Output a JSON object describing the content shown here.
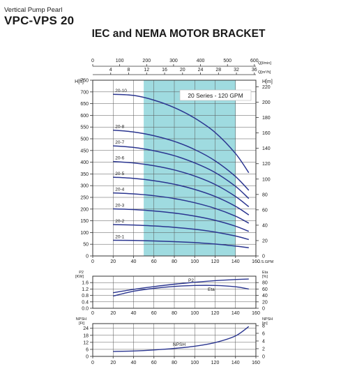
{
  "header": {
    "subtitle": "Vertical Pump Pearl",
    "model": "VPC-VPS 20",
    "title": "IEC and NEMA MOTOR BRACKET"
  },
  "colors": {
    "curve": "#2a3590",
    "band": "#9fdbe0",
    "text": "#1a1a1a",
    "grid": "#333333"
  },
  "chart_data": [
    {
      "type": "line",
      "name": "head",
      "box_label": "20 Series - 120 GPM",
      "xlabel": "U.S.GPM",
      "ylabel": "H[ft]",
      "ylabel_right": "H[m]",
      "xlim": [
        0,
        160
      ],
      "ylim": [
        0,
        750
      ],
      "ylim_right": [
        0,
        228.6
      ],
      "x_ticks": [
        0,
        20,
        40,
        60,
        80,
        100,
        120,
        140,
        160
      ],
      "y_ticks": [
        0,
        50,
        100,
        150,
        200,
        250,
        300,
        350,
        400,
        450,
        500,
        550,
        600,
        650,
        700,
        750
      ],
      "y_right_ticks": [
        0,
        20,
        40,
        60,
        80,
        100,
        120,
        140,
        160,
        180,
        200,
        220
      ],
      "top_axis_1": {
        "label": "Q[l/min]",
        "ticks": [
          0,
          100,
          200,
          300,
          400,
          500,
          600
        ]
      },
      "top_axis_2": {
        "label": "Q[m³/h]",
        "ticks": [
          4,
          8,
          12,
          16,
          20,
          24,
          28,
          32,
          36
        ]
      },
      "band": [
        50,
        140
      ],
      "grid": true,
      "series": [
        {
          "name": "20-1",
          "x": [
            20,
            40,
            60,
            80,
            100,
            120,
            140,
            153
          ],
          "y": [
            67,
            66,
            64,
            61,
            57,
            51,
            42,
            35
          ]
        },
        {
          "name": "20-2",
          "x": [
            20,
            40,
            60,
            80,
            100,
            120,
            140,
            153
          ],
          "y": [
            134,
            132,
            128,
            122,
            114,
            102,
            85,
            70
          ]
        },
        {
          "name": "20-3",
          "x": [
            20,
            40,
            60,
            80,
            100,
            120,
            140,
            153
          ],
          "y": [
            201,
            198,
            192,
            183,
            170,
            152,
            127,
            105
          ]
        },
        {
          "name": "20-4",
          "x": [
            20,
            40,
            60,
            80,
            100,
            120,
            140,
            153
          ],
          "y": [
            269,
            265,
            257,
            245,
            227,
            203,
            170,
            140
          ]
        },
        {
          "name": "20-5",
          "x": [
            20,
            40,
            60,
            80,
            100,
            120,
            140,
            153
          ],
          "y": [
            336,
            331,
            321,
            306,
            284,
            254,
            212,
            175
          ]
        },
        {
          "name": "20-6",
          "x": [
            20,
            40,
            60,
            80,
            100,
            120,
            140,
            153
          ],
          "y": [
            403,
            397,
            385,
            367,
            341,
            305,
            254,
            210
          ]
        },
        {
          "name": "20-7",
          "x": [
            20,
            40,
            60,
            80,
            100,
            120,
            140,
            153
          ],
          "y": [
            470,
            463,
            449,
            428,
            397,
            356,
            297,
            245
          ]
        },
        {
          "name": "20-8",
          "x": [
            20,
            40,
            60,
            80,
            100,
            120,
            140,
            153
          ],
          "y": [
            537,
            529,
            513,
            489,
            454,
            406,
            339,
            280
          ]
        },
        {
          "name": "20-10",
          "x": [
            20,
            40,
            60,
            80,
            100,
            120,
            140,
            153
          ],
          "y": [
            690,
            685,
            665,
            633,
            588,
            527,
            437,
            355
          ]
        }
      ]
    },
    {
      "type": "line",
      "name": "power-efficiency",
      "ylabel": "P2",
      "ylabel_unit": "[KW]",
      "ylabel_right": "Eta",
      "ylabel_right_unit": "[%]",
      "xlim": [
        0,
        160
      ],
      "ylim": [
        0,
        2.0
      ],
      "ylim_right": [
        0,
        100
      ],
      "x_ticks": [
        0,
        20,
        40,
        60,
        80,
        100,
        120,
        140,
        160
      ],
      "y_ticks": [
        "0.0",
        "0.4",
        "0.8",
        "1.2",
        "1.6"
      ],
      "y_right_ticks": [
        0,
        20,
        40,
        60,
        80
      ],
      "series": [
        {
          "name": "P2",
          "x": [
            20,
            40,
            60,
            80,
            100,
            120,
            140,
            153
          ],
          "y": [
            0.97,
            1.18,
            1.35,
            1.5,
            1.62,
            1.72,
            1.79,
            1.82
          ]
        },
        {
          "name": "Eta",
          "x": [
            20,
            40,
            60,
            80,
            100,
            120,
            140,
            153
          ],
          "y": [
            38,
            53,
            62,
            68,
            71,
            71,
            67,
            60
          ]
        }
      ]
    },
    {
      "type": "line",
      "name": "npsh",
      "ylabel": "NPSH",
      "ylabel_unit": "[Ft]",
      "ylabel_right": "NPSH",
      "ylabel_right_unit": "[m]",
      "xlim": [
        0,
        160
      ],
      "ylim": [
        0,
        28
      ],
      "ylim_right": [
        0,
        8.53
      ],
      "x_ticks": [
        0,
        20,
        40,
        60,
        80,
        100,
        120,
        140,
        160
      ],
      "y_ticks": [
        0,
        6,
        12,
        18,
        24
      ],
      "y_right_ticks": [
        0,
        2,
        4,
        6,
        8
      ],
      "series": [
        {
          "name": "NPSH",
          "x": [
            20,
            40,
            60,
            80,
            100,
            120,
            140,
            153
          ],
          "y": [
            4.2,
            4.6,
            5.5,
            6.8,
            8.7,
            11.8,
            17.5,
            25.5
          ]
        }
      ]
    }
  ]
}
